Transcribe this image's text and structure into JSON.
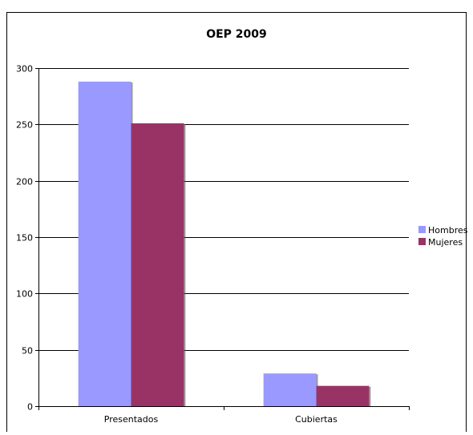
{
  "chart_data": {
    "type": "bar",
    "title": "OEP 2009",
    "categories": [
      "Presentados",
      "Cubiertas"
    ],
    "series": [
      {
        "name": "Hombres",
        "values": [
          288,
          29
        ],
        "color": "#9999FF"
      },
      {
        "name": "Mujeres",
        "values": [
          251,
          18
        ],
        "color": "#993366"
      }
    ],
    "ylim": [
      0,
      300
    ],
    "yticks": [
      0,
      50,
      100,
      150,
      200,
      250,
      300
    ],
    "xlabel": "",
    "ylabel": "",
    "grid": true,
    "legend": "right"
  }
}
